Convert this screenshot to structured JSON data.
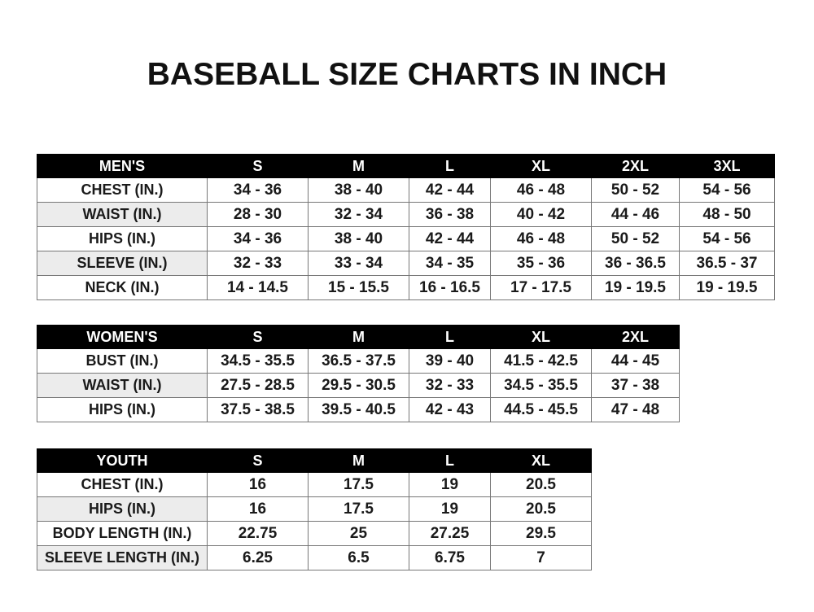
{
  "title": "BASEBALL SIZE CHARTS IN INCH",
  "men": {
    "headers": [
      "MEN'S",
      "S",
      "M",
      "L",
      "XL",
      "2XL",
      "3XL"
    ],
    "rows": [
      [
        "CHEST (IN.)",
        "34 - 36",
        "38 - 40",
        "42 - 44",
        "46 - 48",
        "50 - 52",
        "54 - 56"
      ],
      [
        "WAIST (IN.)",
        "28 - 30",
        "32 - 34",
        "36 - 38",
        "40 - 42",
        "44 - 46",
        "48 - 50"
      ],
      [
        "HIPS (IN.)",
        "34 - 36",
        "38 - 40",
        "42 - 44",
        "46 - 48",
        "50 - 52",
        "54 - 56"
      ],
      [
        "SLEEVE (IN.)",
        "32 - 33",
        "33 - 34",
        "34 - 35",
        "35 - 36",
        "36 - 36.5",
        "36.5 - 37"
      ],
      [
        "NECK (IN.)",
        "14 - 14.5",
        "15 - 15.5",
        "16 - 16.5",
        "17 - 17.5",
        "19 - 19.5",
        "19 - 19.5"
      ]
    ]
  },
  "women": {
    "headers": [
      "WOMEN'S",
      "S",
      "M",
      "L",
      "XL",
      "2XL"
    ],
    "rows": [
      [
        "BUST (IN.)",
        "34.5 - 35.5",
        "36.5 - 37.5",
        "39 - 40",
        "41.5 - 42.5",
        "44 - 45"
      ],
      [
        "WAIST (IN.)",
        "27.5 - 28.5",
        "29.5 - 30.5",
        "32 - 33",
        "34.5 - 35.5",
        "37 - 38"
      ],
      [
        "HIPS (IN.)",
        "37.5 - 38.5",
        "39.5 - 40.5",
        "42 - 43",
        "44.5 - 45.5",
        "47 - 48"
      ]
    ]
  },
  "youth": {
    "headers": [
      "YOUTH",
      "S",
      "M",
      "L",
      "XL"
    ],
    "rows": [
      [
        "CHEST (IN.)",
        "16",
        "17.5",
        "19",
        "20.5"
      ],
      [
        "HIPS (IN.)",
        "16",
        "17.5",
        "19",
        "20.5"
      ],
      [
        "BODY LENGTH (IN.)",
        "22.75",
        "25",
        "27.25",
        "29.5"
      ],
      [
        "SLEEVE LENGTH (IN.)",
        "6.25",
        "6.5",
        "6.75",
        "7"
      ]
    ]
  }
}
